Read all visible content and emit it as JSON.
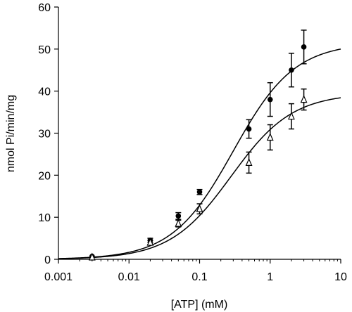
{
  "chart_data": {
    "type": "scatter",
    "title": "",
    "xlabel": "[ATP] (mM)",
    "ylabel": "nmol Pi/min/mg",
    "xscale": "log",
    "xlim": [
      0.001,
      10
    ],
    "ylim": [
      0,
      60
    ],
    "x_ticks": [
      0.001,
      0.01,
      0.1,
      1,
      10
    ],
    "x_tick_labels": [
      "0.001",
      "0.01",
      "0.1",
      "1",
      "10"
    ],
    "y_ticks": [
      0,
      10,
      20,
      30,
      40,
      50,
      60
    ],
    "y_tick_labels": [
      "0",
      "10",
      "20",
      "30",
      "40",
      "50",
      "60"
    ],
    "grid": false,
    "legend": "none",
    "series": [
      {
        "marker": "filled-circle",
        "color": "#000000",
        "points": [
          {
            "x": 0.003,
            "y": 0.7,
            "err": 0
          },
          {
            "x": 0.02,
            "y": 4.5,
            "err": 0.5
          },
          {
            "x": 0.05,
            "y": 10.3,
            "err": 0.8
          },
          {
            "x": 0.1,
            "y": 16.0,
            "err": 0.6
          },
          {
            "x": 0.5,
            "y": 31.0,
            "err": 2.2
          },
          {
            "x": 1,
            "y": 38.0,
            "err": 4.0
          },
          {
            "x": 2,
            "y": 45.0,
            "err": 4.0
          },
          {
            "x": 3,
            "y": 50.5,
            "err": 4.0
          }
        ],
        "fit": {
          "vmax": 51.5,
          "km": 0.3
        }
      },
      {
        "marker": "open-triangle",
        "color": "#000000",
        "points": [
          {
            "x": 0.003,
            "y": 0.5,
            "err": 0
          },
          {
            "x": 0.02,
            "y": 4.0,
            "err": 0.5
          },
          {
            "x": 0.05,
            "y": 8.5,
            "err": 0.8
          },
          {
            "x": 0.1,
            "y": 12.0,
            "err": 1.2
          },
          {
            "x": 0.5,
            "y": 23.0,
            "err": 2.5
          },
          {
            "x": 1,
            "y": 29.0,
            "err": 3.0
          },
          {
            "x": 2,
            "y": 34.0,
            "err": 3.0
          },
          {
            "x": 3,
            "y": 38.0,
            "err": 2.5
          }
        ],
        "fit": {
          "vmax": 39.5,
          "km": 0.28
        }
      }
    ]
  }
}
